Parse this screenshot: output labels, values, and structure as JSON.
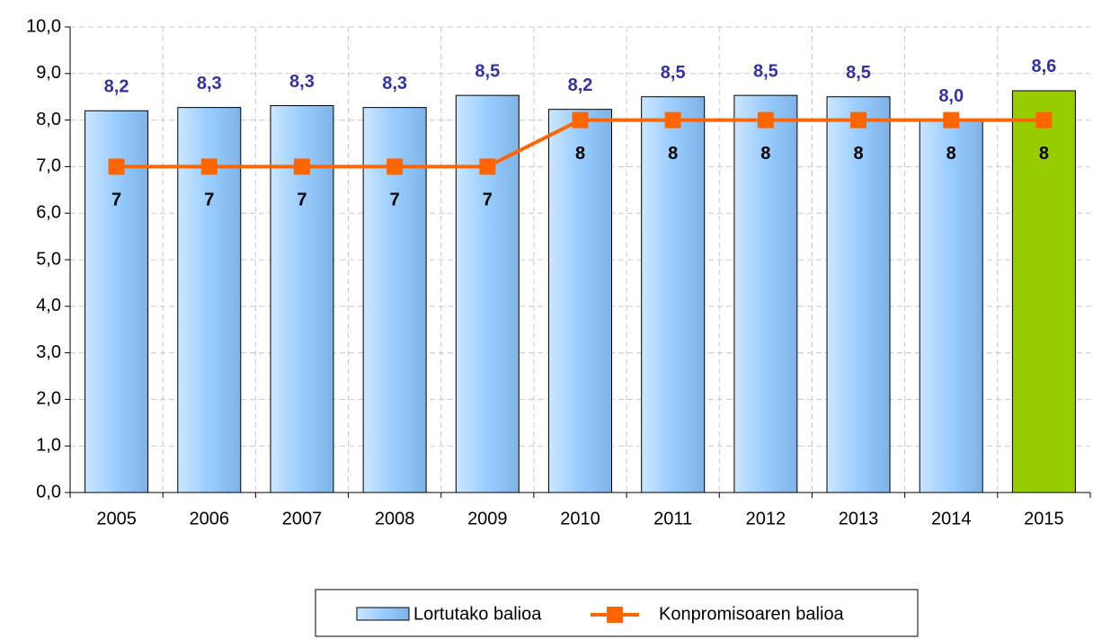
{
  "chart_data": {
    "type": "bar-line",
    "categories": [
      "2005",
      "2006",
      "2007",
      "2008",
      "2009",
      "2010",
      "2011",
      "2012",
      "2013",
      "2014",
      "2015"
    ],
    "series": [
      {
        "name": "Lortutako balioa",
        "type": "bar",
        "color": "#99ccff",
        "colors": [
          "#99ccff",
          "#99ccff",
          "#99ccff",
          "#99ccff",
          "#99ccff",
          "#99ccff",
          "#99ccff",
          "#99ccff",
          "#99ccff",
          "#99ccff",
          "#99cc00"
        ],
        "values": [
          8.2,
          8.27,
          8.31,
          8.27,
          8.53,
          8.23,
          8.5,
          8.53,
          8.5,
          8.0,
          8.63
        ],
        "value_labels": [
          "8,2",
          "8,3",
          "8,3",
          "8,3",
          "8,5",
          "8,2",
          "8,5",
          "8,5",
          "8,5",
          "8,0",
          "8,6"
        ]
      },
      {
        "name": "Konpromisoaren balioa",
        "type": "line",
        "color": "#ff6600",
        "values": [
          7,
          7,
          7,
          7,
          7,
          8,
          8,
          8,
          8,
          8,
          8
        ]
      }
    ],
    "ylim": [
      0,
      10
    ],
    "yticks": [
      {
        "value": 0,
        "label": "0,0"
      },
      {
        "value": 1,
        "label": "1,0"
      },
      {
        "value": 2,
        "label": "2,0"
      },
      {
        "value": 3,
        "label": "3,0"
      },
      {
        "value": 4,
        "label": "4,0"
      },
      {
        "value": 5,
        "label": "5,0"
      },
      {
        "value": 6,
        "label": "6,0"
      },
      {
        "value": 7,
        "label": "7,0"
      },
      {
        "value": 8,
        "label": "8,0"
      },
      {
        "value": 9,
        "label": "9,0"
      },
      {
        "value": 10,
        "label": "10,0"
      }
    ],
    "grid": true,
    "legend": "bottom"
  }
}
